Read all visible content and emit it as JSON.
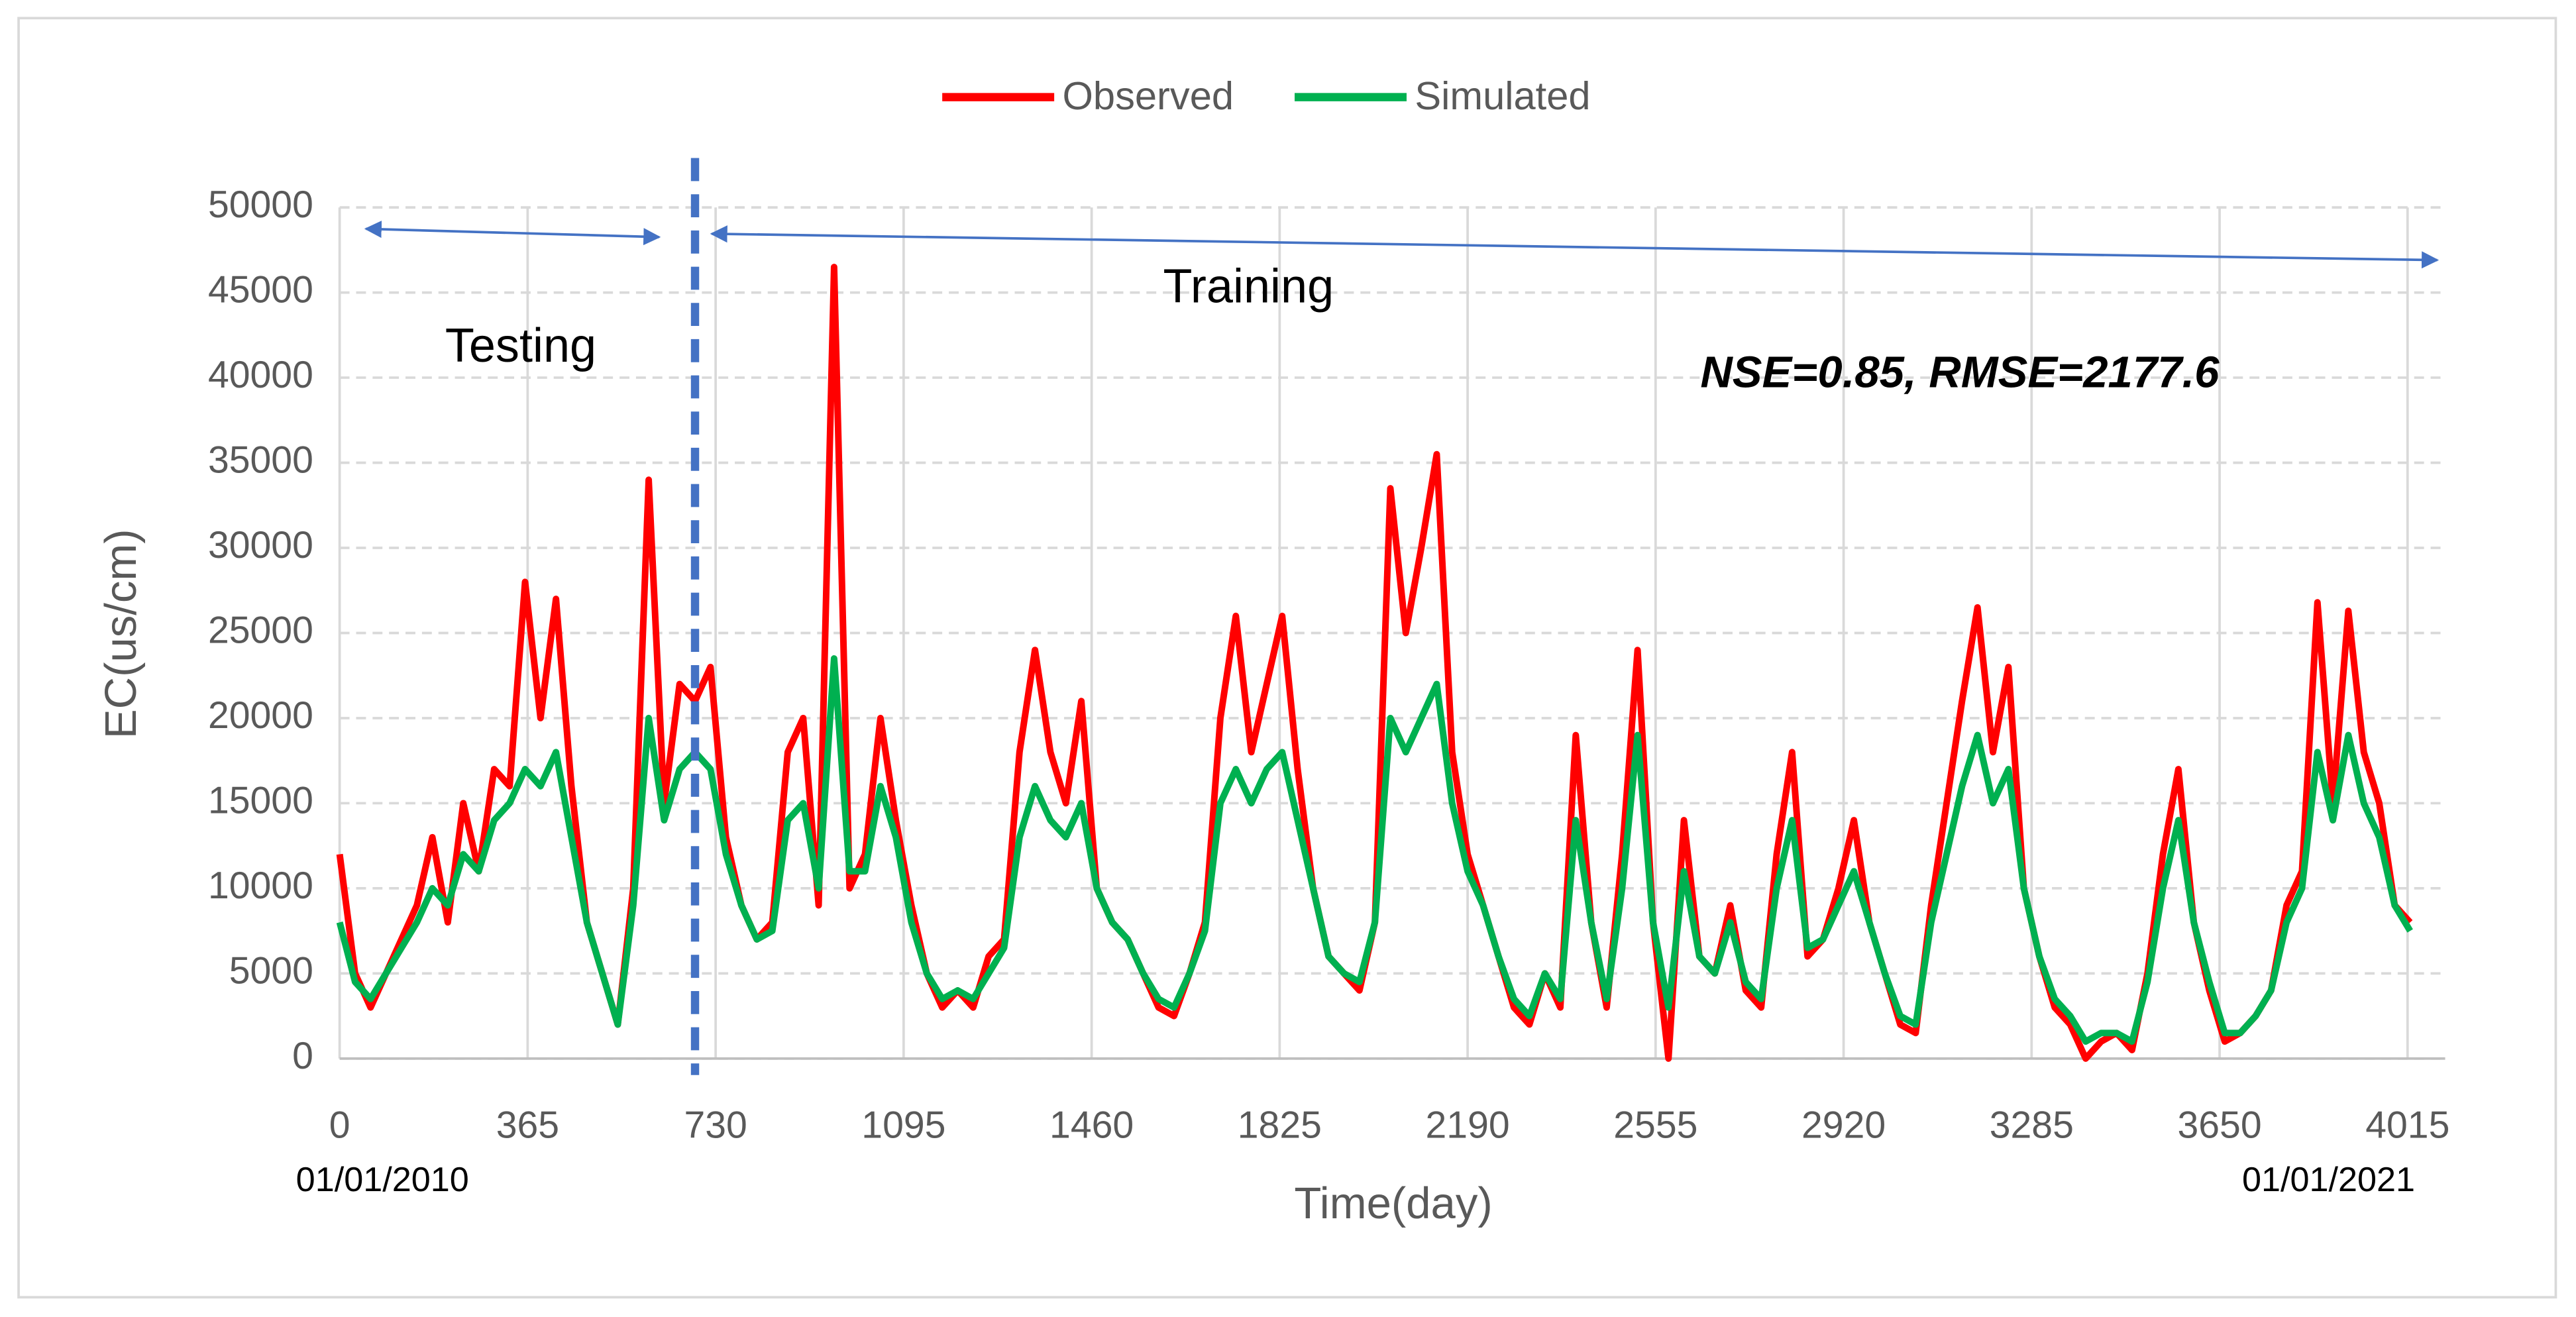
{
  "chart_data": {
    "type": "line",
    "x_label": "Time(day)",
    "y_label": "EC(us/cm)",
    "xlim": [
      0,
      4088
    ],
    "ylim": [
      0,
      50000
    ],
    "xticks": [
      0,
      365,
      730,
      1095,
      1460,
      1825,
      2190,
      2555,
      2920,
      3285,
      3650,
      4015
    ],
    "yticks": [
      0,
      5000,
      10000,
      15000,
      20000,
      25000,
      30000,
      35000,
      40000,
      45000,
      50000
    ],
    "grid": true,
    "legend": "top",
    "split_day": 690,
    "annotations": [
      "Testing",
      "Training",
      "NSE=0.85, RMSE=2177.6"
    ],
    "date_labels": [
      "01/01/2010",
      "01/01/2021"
    ],
    "x": [
      0,
      30,
      60,
      90,
      120,
      150,
      180,
      210,
      240,
      270,
      300,
      330,
      360,
      390,
      420,
      450,
      480,
      510,
      540,
      570,
      600,
      630,
      660,
      690,
      720,
      750,
      780,
      810,
      840,
      870,
      900,
      930,
      960,
      990,
      1020,
      1050,
      1080,
      1110,
      1140,
      1170,
      1200,
      1230,
      1260,
      1290,
      1320,
      1350,
      1380,
      1410,
      1440,
      1470,
      1500,
      1530,
      1560,
      1590,
      1620,
      1650,
      1680,
      1710,
      1740,
      1770,
      1800,
      1830,
      1860,
      1890,
      1920,
      1950,
      1980,
      2010,
      2040,
      2070,
      2100,
      2130,
      2160,
      2190,
      2220,
      2250,
      2280,
      2310,
      2340,
      2370,
      2400,
      2430,
      2460,
      2490,
      2520,
      2550,
      2580,
      2610,
      2640,
      2670,
      2700,
      2730,
      2760,
      2790,
      2820,
      2850,
      2880,
      2910,
      2940,
      2970,
      3000,
      3030,
      3060,
      3090,
      3120,
      3150,
      3180,
      3210,
      3240,
      3270,
      3300,
      3330,
      3360,
      3390,
      3420,
      3450,
      3480,
      3510,
      3540,
      3570,
      3600,
      3630,
      3660,
      3690,
      3720,
      3750,
      3780,
      3810,
      3840,
      3870,
      3900,
      3930,
      3960,
      3990,
      4020
    ],
    "series": [
      {
        "name": "Observed",
        "color": "#ff0000",
        "values": [
          12000,
          5000,
          3000,
          5000,
          7000,
          9000,
          13000,
          8000,
          15000,
          11000,
          17000,
          16000,
          28000,
          20000,
          27000,
          16000,
          8000,
          5000,
          2000,
          10000,
          34000,
          15000,
          22000,
          21000,
          23000,
          13000,
          9000,
          7000,
          8000,
          18000,
          20000,
          9000,
          46500,
          10000,
          12000,
          20000,
          14000,
          9000,
          5000,
          3000,
          4000,
          3000,
          6000,
          7000,
          18000,
          24000,
          18000,
          15000,
          21000,
          10000,
          8000,
          7000,
          5000,
          3000,
          2500,
          5000,
          8000,
          20000,
          26000,
          18000,
          22000,
          26000,
          17000,
          10000,
          6000,
          5000,
          4000,
          8000,
          33500,
          25000,
          30000,
          35500,
          18000,
          12000,
          9000,
          6000,
          3000,
          2000,
          5000,
          3000,
          19000,
          8000,
          3000,
          12000,
          24000,
          8000,
          0,
          14000,
          6000,
          5000,
          9000,
          4000,
          3000,
          12000,
          18000,
          6000,
          7000,
          10000,
          14000,
          8000,
          5000,
          2000,
          1500,
          9000,
          15000,
          21000,
          26500,
          18000,
          23000,
          10000,
          6000,
          3000,
          2000,
          0,
          1000,
          1500,
          500,
          5000,
          12000,
          17000,
          8000,
          4000,
          1000,
          1500,
          2500,
          4000,
          9000,
          11000,
          26800,
          15000,
          26300,
          18000,
          15000,
          9000,
          8000
        ]
      },
      {
        "name": "Simulated",
        "color": "#00b050",
        "values": [
          8000,
          4500,
          3500,
          5000,
          6500,
          8000,
          10000,
          9000,
          12000,
          11000,
          14000,
          15000,
          17000,
          16000,
          18000,
          13000,
          8000,
          5000,
          2000,
          9000,
          20000,
          14000,
          17000,
          18000,
          17000,
          12000,
          9000,
          7000,
          7500,
          14000,
          15000,
          10000,
          23500,
          11000,
          11000,
          16000,
          13000,
          8000,
          5000,
          3500,
          4000,
          3500,
          5000,
          6500,
          13000,
          16000,
          14000,
          13000,
          15000,
          10000,
          8000,
          7000,
          5000,
          3500,
          3000,
          5000,
          7500,
          15000,
          17000,
          15000,
          17000,
          18000,
          14000,
          10000,
          6000,
          5000,
          4500,
          8000,
          20000,
          18000,
          20000,
          22000,
          15000,
          11000,
          9000,
          6000,
          3500,
          2500,
          5000,
          3500,
          14000,
          8000,
          3500,
          10000,
          19000,
          8000,
          3000,
          11000,
          6000,
          5000,
          8000,
          4500,
          3500,
          10000,
          14000,
          6500,
          7000,
          9000,
          11000,
          8000,
          5000,
          2500,
          2000,
          8000,
          12000,
          16000,
          19000,
          15000,
          17000,
          10000,
          6000,
          3500,
          2500,
          1000,
          1500,
          1500,
          1000,
          4500,
          10000,
          14000,
          8000,
          4500,
          1500,
          1500,
          2500,
          4000,
          8000,
          10000,
          18000,
          14000,
          19000,
          15000,
          13000,
          9000,
          7500
        ]
      }
    ]
  }
}
